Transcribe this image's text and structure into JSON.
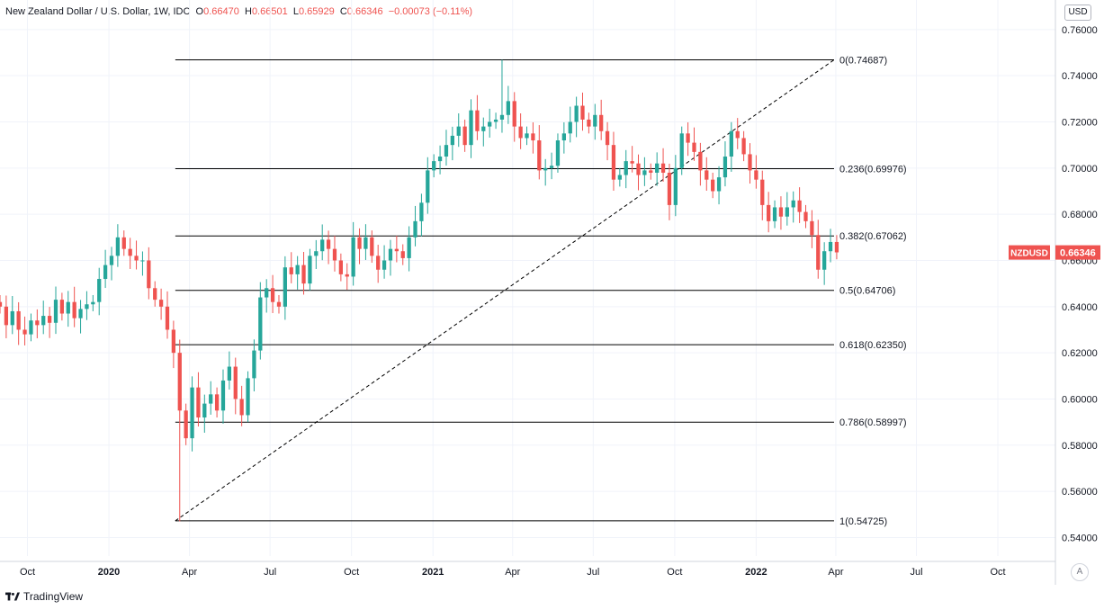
{
  "header": {
    "title": "New Zealand Dollar / U.S. Dollar, 1W, IDC",
    "open_label": "O",
    "open": "0.66470",
    "high_label": "H",
    "high": "0.66501",
    "low_label": "L",
    "low": "0.65929",
    "close_label": "C",
    "close": "0.66346",
    "change": "−0.00073 (−0.11%)"
  },
  "currency_button": "USD",
  "auto_scale_button": "A",
  "brand": "TradingView",
  "colors": {
    "up": "#26a69a",
    "down": "#ef5350",
    "fib_line": "#000000",
    "grid": "#f0f3fa",
    "trend": "#000000"
  },
  "chart_data": {
    "type": "candlestick",
    "symbol": "NZDUSD",
    "last_price": 0.66346,
    "last_price_label": "0.66346",
    "ylim": [
      0.532,
      0.765
    ],
    "y_ticks": [
      "0.76000",
      "0.74000",
      "0.72000",
      "0.70000",
      "0.68000",
      "0.66000",
      "0.64000",
      "0.62000",
      "0.60000",
      "0.58000",
      "0.56000",
      "0.54000"
    ],
    "x_ticks": [
      {
        "label": "Oct",
        "date": "2019-10-01",
        "bold": false
      },
      {
        "label": "2020",
        "date": "2020-01-01",
        "bold": true
      },
      {
        "label": "Apr",
        "date": "2020-04-01",
        "bold": false
      },
      {
        "label": "Jul",
        "date": "2020-07-01",
        "bold": false
      },
      {
        "label": "Oct",
        "date": "2020-10-01",
        "bold": false
      },
      {
        "label": "2021",
        "date": "2021-01-01",
        "bold": true
      },
      {
        "label": "Apr",
        "date": "2021-04-01",
        "bold": false
      },
      {
        "label": "Jul",
        "date": "2021-07-01",
        "bold": false
      },
      {
        "label": "Oct",
        "date": "2021-10-01",
        "bold": false
      },
      {
        "label": "2022",
        "date": "2022-01-01",
        "bold": true
      },
      {
        "label": "Apr",
        "date": "2022-04-01",
        "bold": false
      },
      {
        "label": "Jul",
        "date": "2022-07-01",
        "bold": false
      },
      {
        "label": "Oct",
        "date": "2022-10-01",
        "bold": false
      }
    ],
    "xlim": [
      "2019-08-31",
      "2022-12-05"
    ],
    "fib_levels": [
      {
        "label": "0(0.74687)",
        "value": 0.74687
      },
      {
        "label": "0.236(0.69976)",
        "value": 0.69976
      },
      {
        "label": "0.382(0.67062)",
        "value": 0.67062
      },
      {
        "label": "0.5(0.64706)",
        "value": 0.64706
      },
      {
        "label": "0.618(0.62350)",
        "value": 0.6235
      },
      {
        "label": "0.786(0.58997)",
        "value": 0.58997
      },
      {
        "label": "1(0.54725)",
        "value": 0.54725
      }
    ],
    "fib_range": {
      "start": "2020-03-16",
      "end": "2022-03-30"
    },
    "trend_line": {
      "start": {
        "date": "2020-03-16",
        "price": 0.54725
      },
      "end": {
        "date": "2022-03-30",
        "price": 0.74687
      }
    },
    "first_week": "2019-08-31",
    "closes": [
      0.64,
      0.632,
      0.638,
      0.63,
      0.628,
      0.634,
      0.632,
      0.636,
      0.633,
      0.643,
      0.637,
      0.642,
      0.635,
      0.639,
      0.641,
      0.642,
      0.652,
      0.658,
      0.662,
      0.67,
      0.665,
      0.662,
      0.66,
      0.66,
      0.648,
      0.643,
      0.64,
      0.63,
      0.62,
      0.595,
      0.583,
      0.605,
      0.592,
      0.598,
      0.602,
      0.595,
      0.608,
      0.614,
      0.6,
      0.593,
      0.609,
      0.621,
      0.644,
      0.648,
      0.642,
      0.64,
      0.657,
      0.654,
      0.658,
      0.65,
      0.662,
      0.664,
      0.669,
      0.665,
      0.66,
      0.654,
      0.653,
      0.67,
      0.665,
      0.67,
      0.662,
      0.656,
      0.66,
      0.665,
      0.664,
      0.661,
      0.67,
      0.677,
      0.685,
      0.699,
      0.703,
      0.705,
      0.71,
      0.714,
      0.718,
      0.71,
      0.725,
      0.716,
      0.718,
      0.72,
      0.721,
      0.723,
      0.729,
      0.718,
      0.713,
      0.715,
      0.712,
      0.699,
      0.7,
      0.701,
      0.712,
      0.715,
      0.72,
      0.727,
      0.721,
      0.718,
      0.723,
      0.716,
      0.71,
      0.695,
      0.697,
      0.703,
      0.702,
      0.697,
      0.699,
      0.698,
      0.702,
      0.698,
      0.684,
      0.7,
      0.715,
      0.711,
      0.707,
      0.699,
      0.695,
      0.69,
      0.696,
      0.705,
      0.716,
      0.713,
      0.706,
      0.699,
      0.695,
      0.684,
      0.677,
      0.683,
      0.679,
      0.683,
      0.686,
      0.681,
      0.677,
      0.671,
      0.656,
      0.664,
      0.668,
      0.6635
    ]
  }
}
